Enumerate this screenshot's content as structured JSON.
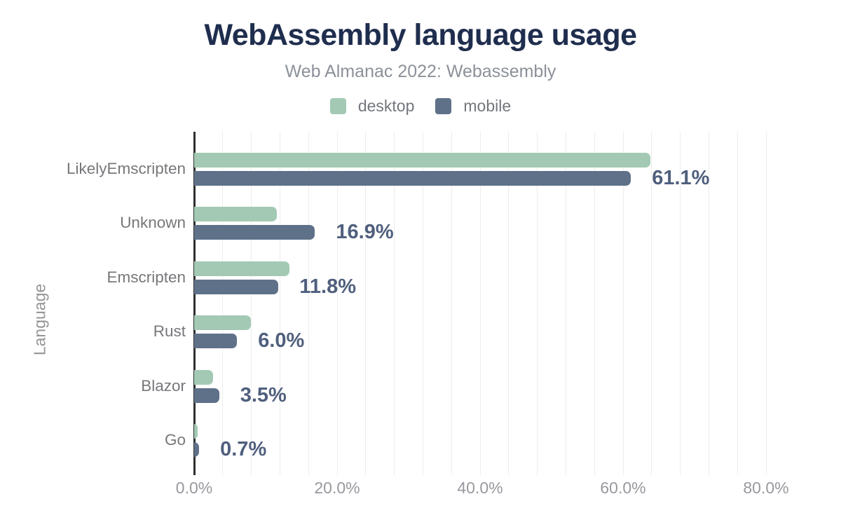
{
  "header": {
    "title": "WebAssembly language usage",
    "subtitle": "Web Almanac 2022: Webassembly"
  },
  "legend": [
    {
      "label": "desktop",
      "color": "#a3c9b4"
    },
    {
      "label": "mobile",
      "color": "#5f7189"
    }
  ],
  "chart_data": {
    "type": "bar",
    "orientation": "horizontal",
    "title": "WebAssembly language usage",
    "subtitle": "Web Almanac 2022: Webassembly",
    "ylabel": "Language",
    "xlabel": "",
    "categories": [
      "LikelyEmscripten",
      "Unknown",
      "Emscripten",
      "Rust",
      "Blazor",
      "Go"
    ],
    "series": [
      {
        "name": "desktop",
        "color": "#a3c9b4",
        "values": [
          63.8,
          11.6,
          13.3,
          7.9,
          2.6,
          0.5
        ]
      },
      {
        "name": "mobile",
        "color": "#5f7189",
        "values": [
          61.1,
          16.9,
          11.8,
          6.0,
          3.5,
          0.7
        ]
      }
    ],
    "value_labels": [
      "61.1%",
      "16.9%",
      "11.8%",
      "6.0%",
      "3.5%",
      "0.7%"
    ],
    "value_labels_series": "mobile",
    "x_tick_values": [
      0,
      20,
      40,
      60,
      80
    ],
    "x_tick_labels": [
      "0.0%",
      "20.0%",
      "40.0%",
      "60.0%",
      "80.0%"
    ],
    "xlim": [
      0,
      80
    ],
    "gridline_step_pct": 4,
    "grid": "vertical-only",
    "legend_position": "top"
  },
  "colors": {
    "title": "#1f2e4e",
    "subtitle": "#8c9199",
    "value_label": "#4f5f7d",
    "category_label": "#77777b",
    "tick_label": "#97999e",
    "gridline": "#ededed",
    "axis_line": "#2f2f2f",
    "background": "#ffffff"
  }
}
